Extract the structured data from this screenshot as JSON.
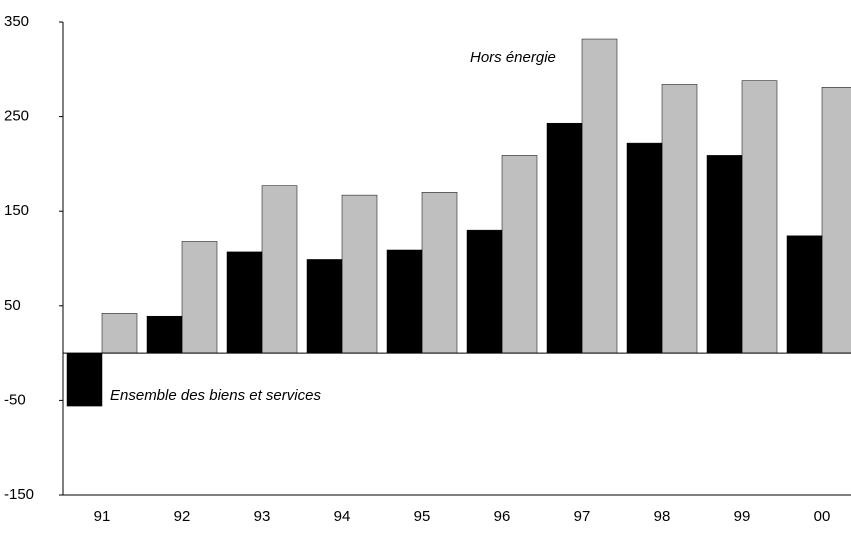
{
  "chart_data": {
    "type": "bar",
    "categories": [
      "91",
      "92",
      "93",
      "94",
      "95",
      "96",
      "97",
      "98",
      "99",
      "00"
    ],
    "series": [
      {
        "name": "Ensemble des biens et services",
        "color": "#000000",
        "values": [
          -56,
          39,
          107,
          99,
          109,
          130,
          243,
          222,
          209,
          124
        ]
      },
      {
        "name": "Hors énergie",
        "color": "#bfbfbf",
        "values": [
          42,
          118,
          177,
          167,
          170,
          209,
          332,
          284,
          288,
          281
        ]
      }
    ],
    "ylim": [
      -150,
      350
    ],
    "yticks": [
      -150,
      -50,
      50,
      150,
      250,
      350
    ],
    "grid": false
  }
}
